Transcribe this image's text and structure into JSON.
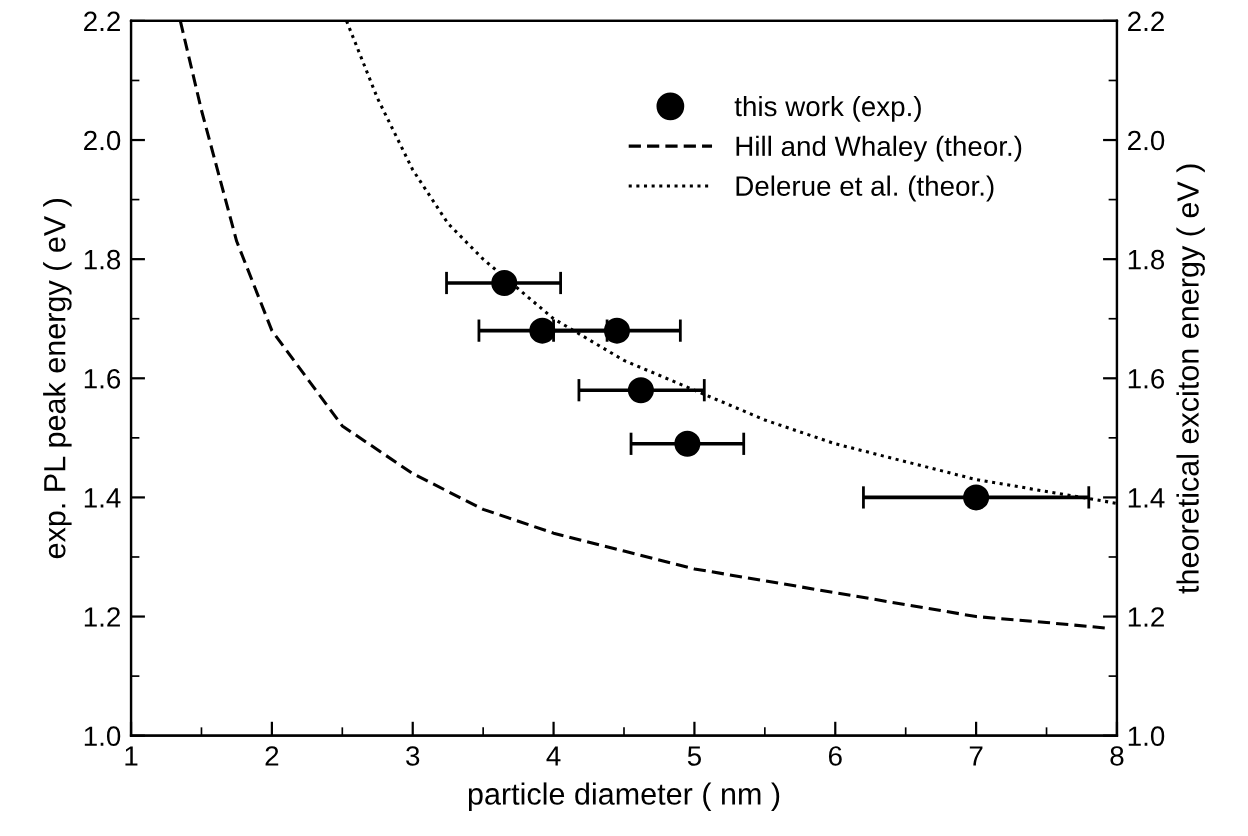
{
  "chart_data": {
    "type": "scatter",
    "xlabel": "particle diameter ( nm )",
    "ylabel": "exp. PL peak energy ( eV )",
    "y2label": "theoretical exciton energy ( eV )",
    "xlim": [
      1,
      8
    ],
    "xticks": [
      1,
      2,
      3,
      4,
      5,
      6,
      7,
      8
    ],
    "ylim": [
      1.0,
      2.2
    ],
    "yticks": [
      {
        "value": 1.0,
        "label": "1.0"
      },
      1.2,
      1.4,
      1.6,
      1.8,
      {
        "value": 2.0,
        "label": "2.0"
      },
      2.2
    ],
    "y2lim": [
      1.0,
      2.2
    ],
    "y2ticks": [
      {
        "value": 1.0,
        "label": "1.0"
      },
      1.2,
      1.4,
      1.6,
      1.8,
      {
        "value": 2.0,
        "label": "2.0"
      },
      2.2
    ],
    "legend": "top right",
    "grid": false,
    "series": [
      {
        "name": "this work (exp.)",
        "color": "#000000",
        "marker": "circle",
        "x": [
          3.65,
          3.92,
          4.45,
          4.62,
          4.95,
          7.0
        ],
        "values": [
          1.76,
          1.68,
          1.68,
          1.58,
          1.49,
          1.4
        ],
        "xerrors": [
          [
            3.24,
            4.05
          ],
          [
            3.47,
            4.38
          ],
          [
            4.0,
            4.9
          ],
          [
            4.18,
            5.07
          ],
          [
            4.55,
            5.35
          ],
          [
            6.2,
            7.8
          ]
        ]
      },
      {
        "name": "Hill and Whaley (theor.)",
        "type": "line",
        "color": "#000000",
        "line_style": "dashed",
        "x": [
          1.35,
          1.5,
          1.75,
          2,
          2.5,
          3,
          3.5,
          4,
          4.5,
          5,
          5.5,
          6,
          6.5,
          7,
          7.5,
          7.95
        ],
        "values": [
          2.2,
          2.05,
          1.83,
          1.68,
          1.52,
          1.44,
          1.38,
          1.34,
          1.31,
          1.28,
          1.26,
          1.24,
          1.22,
          1.2,
          1.19,
          1.18
        ]
      },
      {
        "name": "Delerue et al. (theor.)",
        "type": "line",
        "color": "#000000",
        "line_style": "dotted",
        "x": [
          2.53,
          2.75,
          3,
          3.25,
          3.5,
          3.75,
          4,
          4.5,
          5,
          5.5,
          6,
          6.5,
          7,
          7.5,
          8
        ],
        "values": [
          2.2,
          2.07,
          1.95,
          1.86,
          1.8,
          1.75,
          1.7,
          1.63,
          1.58,
          1.53,
          1.49,
          1.46,
          1.43,
          1.41,
          1.39
        ]
      }
    ]
  }
}
